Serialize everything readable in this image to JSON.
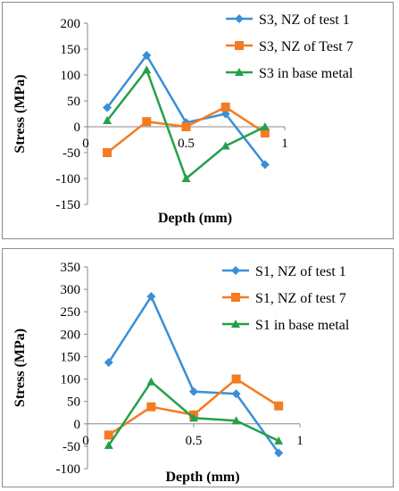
{
  "chart_data": [
    {
      "type": "line",
      "xlabel": "Depth (mm)",
      "ylabel": "Stress (MPa)",
      "xlim": [
        0,
        1
      ],
      "ylim": [
        -150,
        200
      ],
      "x_ticks": [
        "0",
        "0.5",
        "1"
      ],
      "y_ticks": [
        "200",
        "150",
        "100",
        "50",
        "0",
        "-50",
        "-100",
        "-150"
      ],
      "grid": false,
      "legend_position": "right",
      "series": [
        {
          "name": "S3, NZ of test 1",
          "color": "#3a8fd6",
          "marker": "diamond",
          "x": [
            0.1,
            0.3,
            0.5,
            0.7,
            0.9
          ],
          "y": [
            37,
            138,
            8,
            25,
            -73
          ]
        },
        {
          "name": "S3, NZ of Test 7",
          "color": "#f47b20",
          "marker": "square",
          "x": [
            0.1,
            0.3,
            0.5,
            0.7,
            0.9
          ],
          "y": [
            -50,
            10,
            0,
            38,
            -12
          ]
        },
        {
          "name": "S3 in base metal",
          "color": "#24a04a",
          "marker": "triangle",
          "x": [
            0.1,
            0.3,
            0.5,
            0.7,
            0.9
          ],
          "y": [
            12,
            110,
            -100,
            -37,
            0
          ]
        }
      ]
    },
    {
      "type": "line",
      "xlabel": "Depth (mm)",
      "ylabel": "Stress (MPa)",
      "xlim": [
        0,
        1
      ],
      "ylim": [
        -100,
        350
      ],
      "x_ticks": [
        "0",
        "0.5",
        "1"
      ],
      "y_ticks": [
        "350",
        "300",
        "250",
        "200",
        "150",
        "100",
        "50",
        "0",
        "-50",
        "-100"
      ],
      "grid": false,
      "legend_position": "right",
      "series": [
        {
          "name": "S1, NZ of test 1",
          "color": "#3a8fd6",
          "marker": "diamond",
          "x": [
            0.1,
            0.3,
            0.5,
            0.7,
            0.9
          ],
          "y": [
            137,
            284,
            72,
            67,
            -65
          ]
        },
        {
          "name": "S1, NZ of test 7",
          "color": "#f47b20",
          "marker": "square",
          "x": [
            0.1,
            0.3,
            0.5,
            0.7,
            0.9
          ],
          "y": [
            -25,
            38,
            20,
            100,
            40
          ]
        },
        {
          "name": "S1 in base metal",
          "color": "#24a04a",
          "marker": "triangle",
          "x": [
            0.1,
            0.3,
            0.5,
            0.7,
            0.9
          ],
          "y": [
            -48,
            94,
            13,
            7,
            -38
          ]
        }
      ]
    }
  ]
}
